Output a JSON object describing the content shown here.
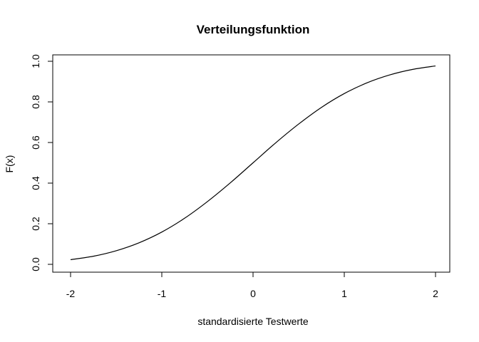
{
  "chart_data": {
    "type": "line",
    "title": "Verteilungsfunktion",
    "xlabel": "standardisierte Testwerte",
    "ylabel": "F(x)",
    "xlim": [
      -2,
      2
    ],
    "ylim": [
      0,
      1
    ],
    "xticks": [
      -2,
      -1,
      0,
      1,
      2
    ],
    "xtick_labels": [
      "-2",
      "-1",
      "0",
      "1",
      "2"
    ],
    "yticks": [
      0,
      0.2,
      0.4,
      0.6,
      0.8,
      1
    ],
    "ytick_labels": [
      "0.0",
      "0.2",
      "0.4",
      "0.6",
      "0.8",
      "1.0"
    ],
    "grid": false,
    "legend": "none",
    "line_color": "#000000",
    "series": [
      {
        "x": [
          -2.0,
          -1.75,
          -1.5,
          -1.25,
          -1.0,
          -0.75,
          -0.5,
          -0.25,
          0.0,
          0.25,
          0.5,
          0.75,
          1.0,
          1.25,
          1.5,
          1.75,
          2.0
        ],
        "values": [
          0.023,
          0.04,
          0.067,
          0.106,
          0.159,
          0.227,
          0.309,
          0.401,
          0.5,
          0.599,
          0.691,
          0.773,
          0.841,
          0.894,
          0.933,
          0.96,
          0.977
        ]
      }
    ]
  }
}
